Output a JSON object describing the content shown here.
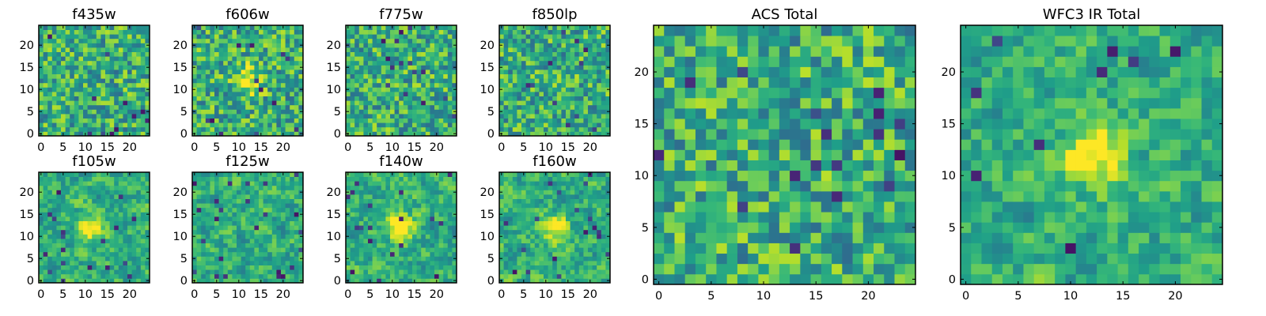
{
  "chart_data": [
    {
      "type": "heatmap",
      "title": "f435w",
      "colormap": "viridis",
      "grid_size": [
        25,
        25
      ],
      "xlim": [
        0,
        24
      ],
      "ylim": [
        0,
        24
      ],
      "xticks": [
        "0",
        "5",
        "10",
        "15",
        "20"
      ],
      "yticks": [
        "0",
        "5",
        "10",
        "15",
        "20"
      ],
      "source_position": null
    },
    {
      "type": "heatmap",
      "title": "f606w",
      "colormap": "viridis",
      "grid_size": [
        25,
        25
      ],
      "xlim": [
        0,
        24
      ],
      "ylim": [
        0,
        24
      ],
      "xticks": [
        "0",
        "5",
        "10",
        "15",
        "20"
      ],
      "yticks": [
        "0",
        "5",
        "10",
        "15",
        "20"
      ],
      "source_position": [
        12,
        12
      ]
    },
    {
      "type": "heatmap",
      "title": "f775w",
      "colormap": "viridis",
      "grid_size": [
        25,
        25
      ],
      "xlim": [
        0,
        24
      ],
      "ylim": [
        0,
        24
      ],
      "xticks": [
        "0",
        "5",
        "10",
        "15",
        "20"
      ],
      "yticks": [
        "0",
        "5",
        "10",
        "15",
        "20"
      ],
      "source_position": null
    },
    {
      "type": "heatmap",
      "title": "f850lp",
      "colormap": "viridis",
      "grid_size": [
        25,
        25
      ],
      "xlim": [
        0,
        24
      ],
      "ylim": [
        0,
        24
      ],
      "xticks": [
        "0",
        "5",
        "10",
        "15",
        "20"
      ],
      "yticks": [
        "0",
        "5",
        "10",
        "15",
        "20"
      ],
      "source_position": null
    },
    {
      "type": "heatmap",
      "title": "f105w",
      "colormap": "viridis",
      "grid_size": [
        25,
        25
      ],
      "xlim": [
        0,
        24
      ],
      "ylim": [
        0,
        24
      ],
      "xticks": [
        "0",
        "5",
        "10",
        "15",
        "20"
      ],
      "yticks": [
        "0",
        "5",
        "10",
        "15",
        "20"
      ],
      "source_position": [
        11,
        12
      ]
    },
    {
      "type": "heatmap",
      "title": "f125w",
      "colormap": "viridis",
      "grid_size": [
        25,
        25
      ],
      "xlim": [
        0,
        24
      ],
      "ylim": [
        0,
        24
      ],
      "xticks": [
        "0",
        "5",
        "10",
        "15",
        "20"
      ],
      "yticks": [
        "0",
        "5",
        "10",
        "15",
        "20"
      ],
      "source_position": null
    },
    {
      "type": "heatmap",
      "title": "f140w",
      "colormap": "viridis",
      "grid_size": [
        25,
        25
      ],
      "xlim": [
        0,
        24
      ],
      "ylim": [
        0,
        24
      ],
      "xticks": [
        "0",
        "5",
        "10",
        "15",
        "20"
      ],
      "yticks": [
        "0",
        "5",
        "10",
        "15",
        "20"
      ],
      "source_position": [
        12,
        12
      ]
    },
    {
      "type": "heatmap",
      "title": "f160w",
      "colormap": "viridis",
      "grid_size": [
        25,
        25
      ],
      "xlim": [
        0,
        24
      ],
      "ylim": [
        0,
        24
      ],
      "xticks": [
        "0",
        "5",
        "10",
        "15",
        "20"
      ],
      "yticks": [
        "0",
        "5",
        "10",
        "15",
        "20"
      ],
      "source_position": [
        12,
        12
      ]
    },
    {
      "type": "heatmap",
      "title": "ACS Total",
      "colormap": "viridis",
      "grid_size": [
        25,
        25
      ],
      "xlim": [
        0,
        24
      ],
      "ylim": [
        0,
        24
      ],
      "xticks": [
        "0",
        "5",
        "10",
        "15",
        "20"
      ],
      "yticks": [
        "0",
        "5",
        "10",
        "15",
        "20"
      ],
      "source_position": null
    },
    {
      "type": "heatmap",
      "title": "WFC3 IR Total",
      "colormap": "viridis",
      "grid_size": [
        25,
        25
      ],
      "xlim": [
        0,
        24
      ],
      "ylim": [
        0,
        24
      ],
      "xticks": [
        "0",
        "5",
        "10",
        "15",
        "20"
      ],
      "yticks": [
        "0",
        "5",
        "10",
        "15",
        "20"
      ],
      "source_position": [
        12,
        12
      ]
    }
  ]
}
